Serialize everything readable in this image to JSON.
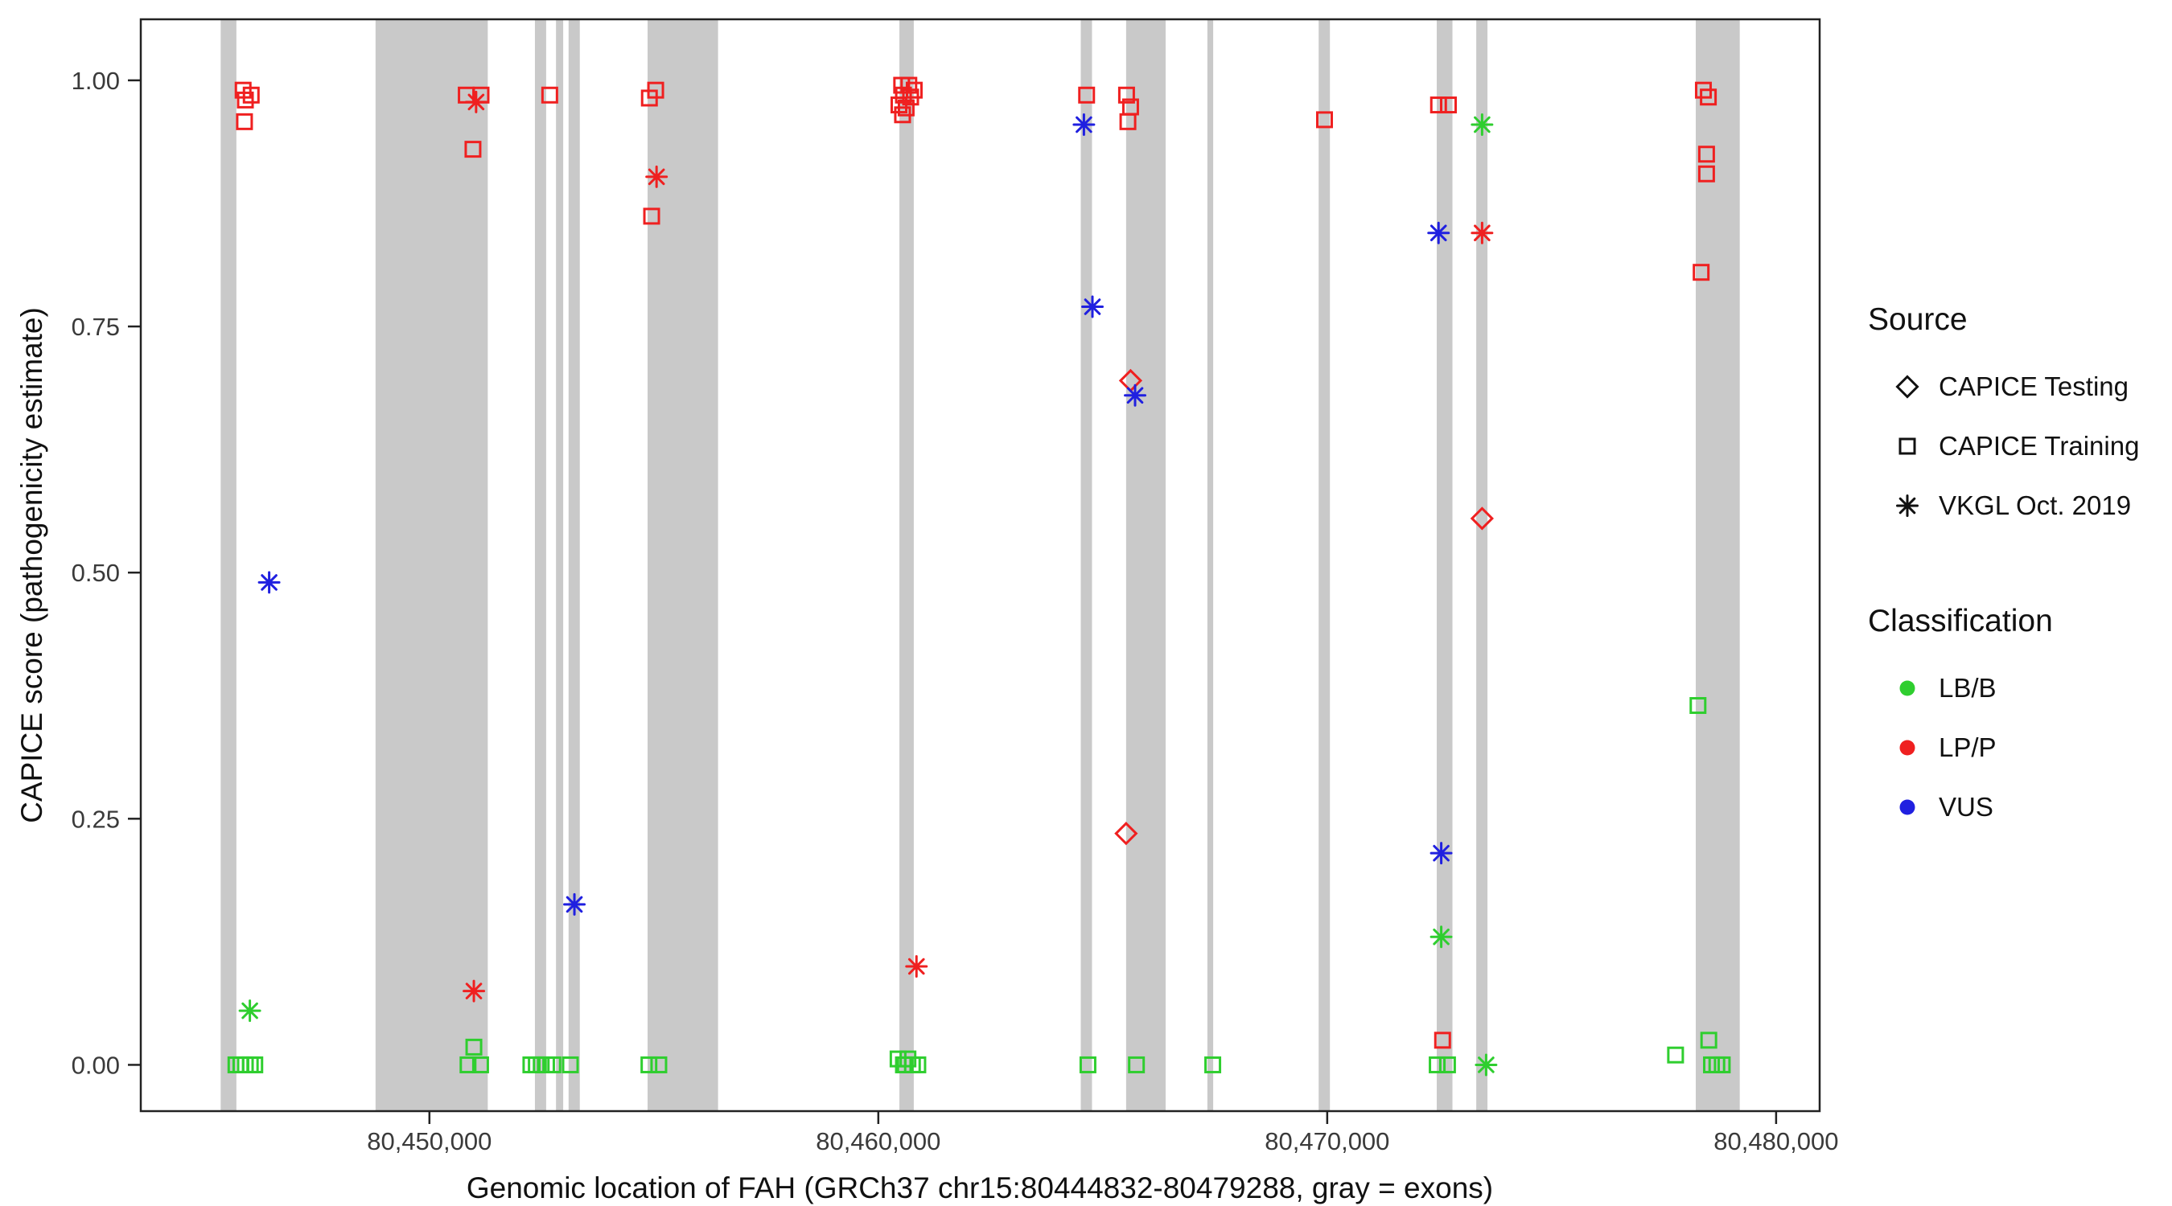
{
  "chart_data": {
    "type": "scatter",
    "title": "",
    "xlabel": "Genomic location of FAH (GRCh37 chr15:80444832-80479288, gray = exons)",
    "ylabel": "CAPICE score (pathogenicity estimate)",
    "xlim": [
      80443570,
      80480970
    ],
    "ylim": [
      -0.047,
      1.062
    ],
    "grid": false,
    "x_ticks": [
      {
        "value": 80450000,
        "label": "80,450,000"
      },
      {
        "value": 80460000,
        "label": "80,460,000"
      },
      {
        "value": 80470000,
        "label": "80,470,000"
      },
      {
        "value": 80480000,
        "label": "80,480,000"
      }
    ],
    "y_ticks": [
      {
        "value": 0.0,
        "label": "0.00"
      },
      {
        "value": 0.25,
        "label": "0.25"
      },
      {
        "value": 0.5,
        "label": "0.50"
      },
      {
        "value": 0.75,
        "label": "0.75"
      },
      {
        "value": 1.0,
        "label": "1.00"
      }
    ],
    "exon_color": "#c9c9c9",
    "exons": [
      [
        80445350,
        80445700
      ],
      [
        80448800,
        80451300
      ],
      [
        80452350,
        80452600
      ],
      [
        80452820,
        80452980
      ],
      [
        80453100,
        80453350
      ],
      [
        80454860,
        80456430
      ],
      [
        80460470,
        80460790
      ],
      [
        80464510,
        80464760
      ],
      [
        80465520,
        80466400
      ],
      [
        80467330,
        80467460
      ],
      [
        80469810,
        80470060
      ],
      [
        80472440,
        80472790
      ],
      [
        80473320,
        80473570
      ],
      [
        80478210,
        80479190
      ]
    ],
    "colors": {
      "LB/B": "#2fce2f",
      "LP/P": "#ef2020",
      "VUS": "#2020e0"
    },
    "shapes": {
      "testing": "diamond",
      "training": "square",
      "vkgl": "asterisk"
    },
    "points": [
      {
        "x": 80445850,
        "y": 0.99,
        "source": "training",
        "cls": "LP/P"
      },
      {
        "x": 80446030,
        "y": 0.985,
        "source": "training",
        "cls": "LP/P"
      },
      {
        "x": 80445900,
        "y": 0.98,
        "source": "training",
        "cls": "LP/P"
      },
      {
        "x": 80445880,
        "y": 0.958,
        "source": "training",
        "cls": "LP/P"
      },
      {
        "x": 80446430,
        "y": 0.49,
        "source": "vkgl",
        "cls": "VUS"
      },
      {
        "x": 80446000,
        "y": 0.055,
        "source": "vkgl",
        "cls": "LB/B"
      },
      {
        "x": 80445690,
        "y": 0.0,
        "source": "training",
        "cls": "LB/B"
      },
      {
        "x": 80445800,
        "y": 0.0,
        "source": "training",
        "cls": "LB/B"
      },
      {
        "x": 80445900,
        "y": 0.0,
        "source": "training",
        "cls": "LB/B"
      },
      {
        "x": 80446010,
        "y": 0.0,
        "source": "training",
        "cls": "LB/B"
      },
      {
        "x": 80446110,
        "y": 0.0,
        "source": "training",
        "cls": "LB/B"
      },
      {
        "x": 80450820,
        "y": 0.985,
        "source": "training",
        "cls": "LP/P"
      },
      {
        "x": 80451150,
        "y": 0.985,
        "source": "training",
        "cls": "LP/P"
      },
      {
        "x": 80451040,
        "y": 0.978,
        "source": "vkgl",
        "cls": "LP/P"
      },
      {
        "x": 80450970,
        "y": 0.93,
        "source": "training",
        "cls": "LP/P"
      },
      {
        "x": 80450990,
        "y": 0.075,
        "source": "vkgl",
        "cls": "LP/P"
      },
      {
        "x": 80450990,
        "y": 0.018,
        "source": "training",
        "cls": "LB/B"
      },
      {
        "x": 80450860,
        "y": 0.0,
        "source": "training",
        "cls": "LB/B"
      },
      {
        "x": 80451140,
        "y": 0.0,
        "source": "training",
        "cls": "LB/B"
      },
      {
        "x": 80452680,
        "y": 0.985,
        "source": "training",
        "cls": "LP/P"
      },
      {
        "x": 80453230,
        "y": 0.163,
        "source": "vkgl",
        "cls": "VUS"
      },
      {
        "x": 80452260,
        "y": 0.0,
        "source": "training",
        "cls": "LB/B"
      },
      {
        "x": 80452380,
        "y": 0.0,
        "source": "training",
        "cls": "LB/B"
      },
      {
        "x": 80452490,
        "y": 0.0,
        "source": "training",
        "cls": "LB/B"
      },
      {
        "x": 80452610,
        "y": 0.0,
        "source": "training",
        "cls": "LB/B"
      },
      {
        "x": 80452750,
        "y": 0.0,
        "source": "training",
        "cls": "LB/B"
      },
      {
        "x": 80453140,
        "y": 0.0,
        "source": "training",
        "cls": "LB/B"
      },
      {
        "x": 80455040,
        "y": 0.99,
        "source": "training",
        "cls": "LP/P"
      },
      {
        "x": 80454900,
        "y": 0.982,
        "source": "training",
        "cls": "LP/P"
      },
      {
        "x": 80455060,
        "y": 0.902,
        "source": "vkgl",
        "cls": "LP/P"
      },
      {
        "x": 80454950,
        "y": 0.862,
        "source": "training",
        "cls": "LP/P"
      },
      {
        "x": 80454890,
        "y": 0.0,
        "source": "training",
        "cls": "LB/B"
      },
      {
        "x": 80455110,
        "y": 0.0,
        "source": "training",
        "cls": "LB/B"
      },
      {
        "x": 80460520,
        "y": 0.995,
        "source": "training",
        "cls": "LP/P"
      },
      {
        "x": 80460680,
        "y": 0.995,
        "source": "training",
        "cls": "LP/P"
      },
      {
        "x": 80460800,
        "y": 0.99,
        "source": "training",
        "cls": "LP/P"
      },
      {
        "x": 80460560,
        "y": 0.985,
        "source": "training",
        "cls": "LP/P"
      },
      {
        "x": 80460720,
        "y": 0.983,
        "source": "training",
        "cls": "LP/P"
      },
      {
        "x": 80460460,
        "y": 0.975,
        "source": "training",
        "cls": "LP/P"
      },
      {
        "x": 80460620,
        "y": 0.972,
        "source": "training",
        "cls": "LP/P"
      },
      {
        "x": 80460540,
        "y": 0.965,
        "source": "training",
        "cls": "LP/P"
      },
      {
        "x": 80460850,
        "y": 0.1,
        "source": "vkgl",
        "cls": "LP/P"
      },
      {
        "x": 80460440,
        "y": 0.006,
        "source": "training",
        "cls": "LB/B"
      },
      {
        "x": 80460560,
        "y": 0.0,
        "source": "training",
        "cls": "LB/B"
      },
      {
        "x": 80460660,
        "y": 0.006,
        "source": "training",
        "cls": "LB/B"
      },
      {
        "x": 80460760,
        "y": 0.0,
        "source": "training",
        "cls": "LB/B"
      },
      {
        "x": 80460880,
        "y": 0.0,
        "source": "training",
        "cls": "LB/B"
      },
      {
        "x": 80460600,
        "y": 0.0,
        "source": "training",
        "cls": "LB/B"
      },
      {
        "x": 80464640,
        "y": 0.985,
        "source": "training",
        "cls": "LP/P"
      },
      {
        "x": 80464580,
        "y": 0.955,
        "source": "vkgl",
        "cls": "VUS"
      },
      {
        "x": 80464770,
        "y": 0.77,
        "source": "vkgl",
        "cls": "VUS"
      },
      {
        "x": 80464670,
        "y": 0.0,
        "source": "training",
        "cls": "LB/B"
      },
      {
        "x": 80465530,
        "y": 0.985,
        "source": "training",
        "cls": "LP/P"
      },
      {
        "x": 80465620,
        "y": 0.973,
        "source": "training",
        "cls": "LP/P"
      },
      {
        "x": 80465560,
        "y": 0.958,
        "source": "training",
        "cls": "LP/P"
      },
      {
        "x": 80465620,
        "y": 0.695,
        "source": "testing",
        "cls": "LP/P"
      },
      {
        "x": 80465720,
        "y": 0.68,
        "source": "vkgl",
        "cls": "VUS"
      },
      {
        "x": 80465520,
        "y": 0.235,
        "source": "testing",
        "cls": "LP/P"
      },
      {
        "x": 80465750,
        "y": 0.0,
        "source": "training",
        "cls": "LB/B"
      },
      {
        "x": 80467450,
        "y": 0.0,
        "source": "training",
        "cls": "LB/B"
      },
      {
        "x": 80469940,
        "y": 0.96,
        "source": "training",
        "cls": "LP/P"
      },
      {
        "x": 80472480,
        "y": 0.975,
        "source": "training",
        "cls": "LP/P"
      },
      {
        "x": 80472700,
        "y": 0.975,
        "source": "training",
        "cls": "LP/P"
      },
      {
        "x": 80472480,
        "y": 0.845,
        "source": "vkgl",
        "cls": "VUS"
      },
      {
        "x": 80472540,
        "y": 0.215,
        "source": "vkgl",
        "cls": "VUS"
      },
      {
        "x": 80472540,
        "y": 0.13,
        "source": "vkgl",
        "cls": "LB/B"
      },
      {
        "x": 80472570,
        "y": 0.025,
        "source": "training",
        "cls": "LP/P"
      },
      {
        "x": 80472450,
        "y": 0.0,
        "source": "training",
        "cls": "LB/B"
      },
      {
        "x": 80472680,
        "y": 0.0,
        "source": "training",
        "cls": "LB/B"
      },
      {
        "x": 80473450,
        "y": 0.955,
        "source": "vkgl",
        "cls": "LB/B"
      },
      {
        "x": 80473450,
        "y": 0.845,
        "source": "vkgl",
        "cls": "LP/P"
      },
      {
        "x": 80473450,
        "y": 0.555,
        "source": "testing",
        "cls": "LP/P"
      },
      {
        "x": 80473540,
        "y": 0.0,
        "source": "vkgl",
        "cls": "LB/B"
      },
      {
        "x": 80478380,
        "y": 0.99,
        "source": "training",
        "cls": "LP/P"
      },
      {
        "x": 80478490,
        "y": 0.983,
        "source": "training",
        "cls": "LP/P"
      },
      {
        "x": 80478450,
        "y": 0.925,
        "source": "training",
        "cls": "LP/P"
      },
      {
        "x": 80478450,
        "y": 0.905,
        "source": "training",
        "cls": "LP/P"
      },
      {
        "x": 80478330,
        "y": 0.805,
        "source": "training",
        "cls": "LP/P"
      },
      {
        "x": 80478260,
        "y": 0.365,
        "source": "training",
        "cls": "LB/B"
      },
      {
        "x": 80477760,
        "y": 0.01,
        "source": "training",
        "cls": "LB/B"
      },
      {
        "x": 80478500,
        "y": 0.025,
        "source": "training",
        "cls": "LB/B"
      },
      {
        "x": 80478560,
        "y": 0.0,
        "source": "training",
        "cls": "LB/B"
      },
      {
        "x": 80478680,
        "y": 0.0,
        "source": "training",
        "cls": "LB/B"
      },
      {
        "x": 80478800,
        "y": 0.0,
        "source": "training",
        "cls": "LB/B"
      }
    ]
  },
  "legend": {
    "source": {
      "title": "Source",
      "items": [
        {
          "label": "CAPICE Testing",
          "shape": "diamond"
        },
        {
          "label": "CAPICE Training",
          "shape": "square"
        },
        {
          "label": "VKGL Oct. 2019",
          "shape": "asterisk"
        }
      ]
    },
    "classification": {
      "title": "Classification",
      "items": [
        {
          "label": "LB/B",
          "color": "#2fce2f"
        },
        {
          "label": "LP/P",
          "color": "#ef2020"
        },
        {
          "label": "VUS",
          "color": "#2020e0"
        }
      ]
    }
  }
}
